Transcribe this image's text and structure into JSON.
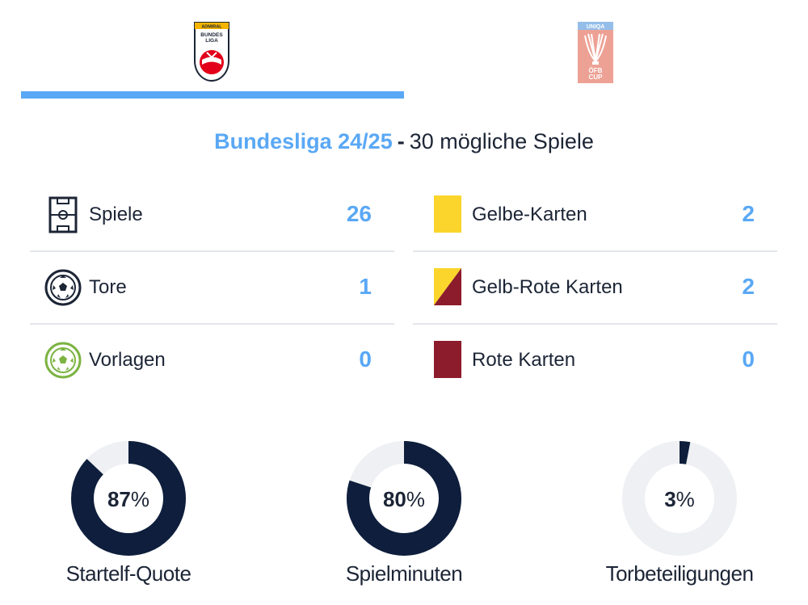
{
  "tabs": [
    {
      "label": "Admiral Bundesliga",
      "logo_lines": [
        "ADMIRAL",
        "BUNDES",
        "LIGA"
      ],
      "active": true
    },
    {
      "label": "UNIQA ÖFB Cup",
      "logo_lines": [
        "UNIQA",
        "ÖFB",
        "CUP"
      ],
      "active": false
    }
  ],
  "competition": {
    "name": "Bundesliga 24/25",
    "separator": "-",
    "info": "30 mögliche Spiele"
  },
  "stats_left": [
    {
      "icon": "pitch-icon",
      "label": "Spiele",
      "value": "26"
    },
    {
      "icon": "ball-icon",
      "label": "Tore",
      "value": "1"
    },
    {
      "icon": "assist-ball-icon",
      "label": "Vorlagen",
      "value": "0"
    }
  ],
  "stats_right": [
    {
      "icon": "yellow-card-icon",
      "label": "Gelbe-Karten",
      "value": "2"
    },
    {
      "icon": "yellow-red-card-icon",
      "label": "Gelb-Rote Karten",
      "value": "2"
    },
    {
      "icon": "red-card-icon",
      "label": "Rote Karten",
      "value": "0"
    }
  ],
  "donuts": [
    {
      "label": "Startelf-Quote",
      "value": "87",
      "unit": "%",
      "fraction": 0.87
    },
    {
      "label": "Spielminuten",
      "value": "80",
      "unit": "%",
      "fraction": 0.8
    },
    {
      "label": "Torbeteiligungen",
      "value": "3",
      "unit": "%",
      "fraction": 0.03
    }
  ],
  "colors": {
    "accent": "#5aa8f5",
    "navy": "#0e1e3c",
    "track": "#eef0f3",
    "yellow": "#fbd52b",
    "red": "#8c1b2c",
    "green": "#7cb342",
    "cup_red": "#e0553e",
    "cup_blue": "#3d8ad8"
  }
}
